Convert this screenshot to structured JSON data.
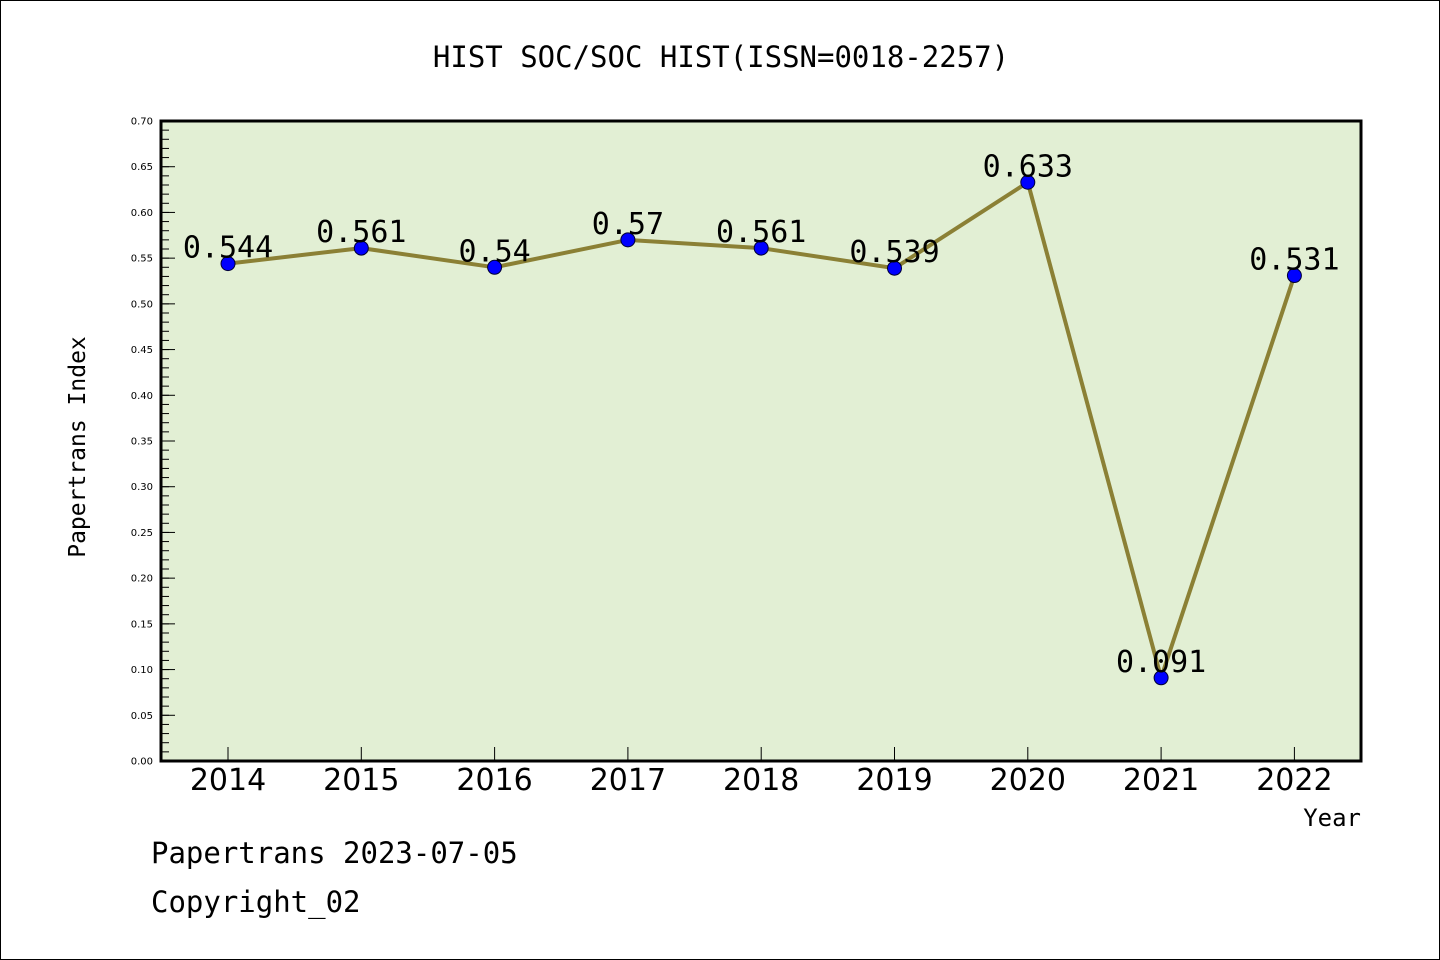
{
  "chart_data": {
    "type": "line",
    "title": "HIST SOC/SOC HIST(ISSN=0018-2257)",
    "xlabel": "Year",
    "ylabel": "Papertrans Index",
    "categories": [
      "2014",
      "2015",
      "2016",
      "2017",
      "2018",
      "2019",
      "2020",
      "2021",
      "2022"
    ],
    "values": [
      0.544,
      0.561,
      0.54,
      0.57,
      0.561,
      0.539,
      0.633,
      0.091,
      0.531
    ],
    "data_labels": [
      "0.544",
      "0.561",
      "0.54",
      "0.57",
      "0.561",
      "0.539",
      "0.633",
      "0.091",
      "0.531"
    ],
    "ylim": [
      0,
      0.7
    ],
    "yticks": [
      "0.00",
      "0.05",
      "0.10",
      "0.15",
      "0.20",
      "0.25",
      "0.30",
      "0.35",
      "0.40",
      "0.45",
      "0.50",
      "0.55",
      "0.60",
      "0.65",
      "0.70"
    ],
    "grid": false,
    "colors": {
      "plot_background": "#e2efd4",
      "line": "#8b8035",
      "marker": "#0000ff",
      "axes": "#000000"
    }
  },
  "footer": {
    "date_line": "Papertrans 2023-07-05",
    "copyright": "Copyright_02"
  }
}
